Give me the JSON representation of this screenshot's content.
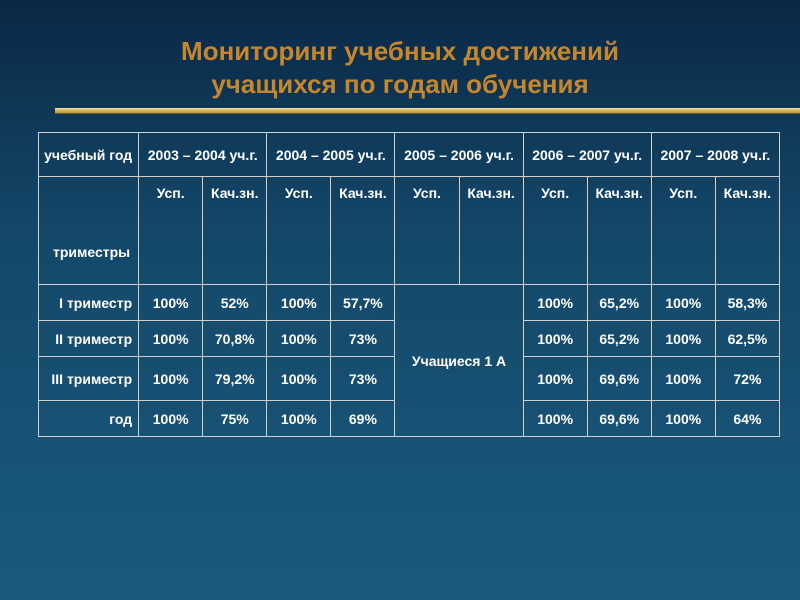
{
  "title": {
    "line1": "Мониторинг учебных достижений",
    "line2": "учащихся по годам обучения"
  },
  "colors": {
    "title_color": "#c5862e",
    "text_color": "#ffffff",
    "border_color": "#cfcfcf",
    "bg_top": "#0a2845",
    "bg_bottom": "#1a5a7c",
    "underline_top": "#e0c878",
    "underline_bottom": "#b89840"
  },
  "table": {
    "type": "table",
    "header_left": "учебный год",
    "sub_left": "триместры",
    "years": [
      "2003 – 2004 уч.г.",
      "2004 – 2005 уч.г.",
      "2005 – 2006 уч.г.",
      "2006 – 2007 уч.г.",
      "2007 – 2008 уч.г."
    ],
    "sub_labels": [
      "Усп.",
      "Кач.зн."
    ],
    "merged_label": "Учащиеся 1 А",
    "rows": [
      {
        "label": "I триместр",
        "y0": [
          "100%",
          "52%"
        ],
        "y1": [
          "100%",
          "57,7%"
        ],
        "y3": [
          "100%",
          "65,2%"
        ],
        "y4": [
          "100%",
          "58,3%"
        ]
      },
      {
        "label": "II триместр",
        "y0": [
          "100%",
          "70,8%"
        ],
        "y1": [
          "100%",
          "73%"
        ],
        "y3": [
          "100%",
          "65,2%"
        ],
        "y4": [
          "100%",
          "62,5%"
        ]
      },
      {
        "label": "III триместр",
        "y0": [
          "100%",
          "79,2%"
        ],
        "y1": [
          "100%",
          "73%"
        ],
        "y3": [
          "100%",
          "69,6%"
        ],
        "y4": [
          "100%",
          "72%"
        ]
      },
      {
        "label": "год",
        "y0": [
          "100%",
          "75%"
        ],
        "y1": [
          "100%",
          "69%"
        ],
        "y3": [
          "100%",
          "69,6%"
        ],
        "y4": [
          "100%",
          "64%"
        ]
      }
    ]
  }
}
